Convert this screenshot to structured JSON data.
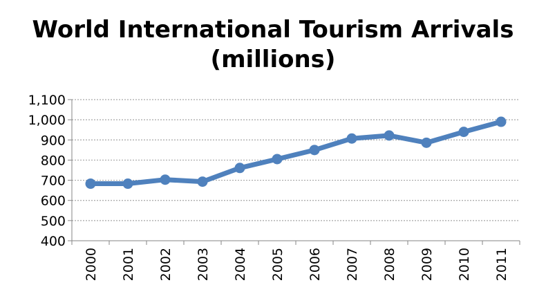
{
  "chart_data": {
    "type": "line",
    "title_line1": "World International Tourism Arrivals",
    "title_line2": "(millions)",
    "xlabel": "",
    "ylabel": "",
    "categories": [
      "2000",
      "2001",
      "2002",
      "2003",
      "2004",
      "2005",
      "2006",
      "2007",
      "2008",
      "2009",
      "2010",
      "2011"
    ],
    "values": [
      683,
      683,
      703,
      693,
      761,
      805,
      850,
      907,
      922,
      886,
      940,
      990
    ],
    "ylim": [
      400,
      1100
    ],
    "yticks": [
      400,
      500,
      600,
      700,
      800,
      900,
      1000,
      1100
    ],
    "ytick_labels": [
      "400",
      "500",
      "600",
      "700",
      "800",
      "900",
      "1,000",
      "1,100"
    ],
    "grid": true,
    "legend": "none",
    "colors": {
      "line": "#4f81bd",
      "grid": "#a6a6a6",
      "axis": "#868686"
    }
  }
}
